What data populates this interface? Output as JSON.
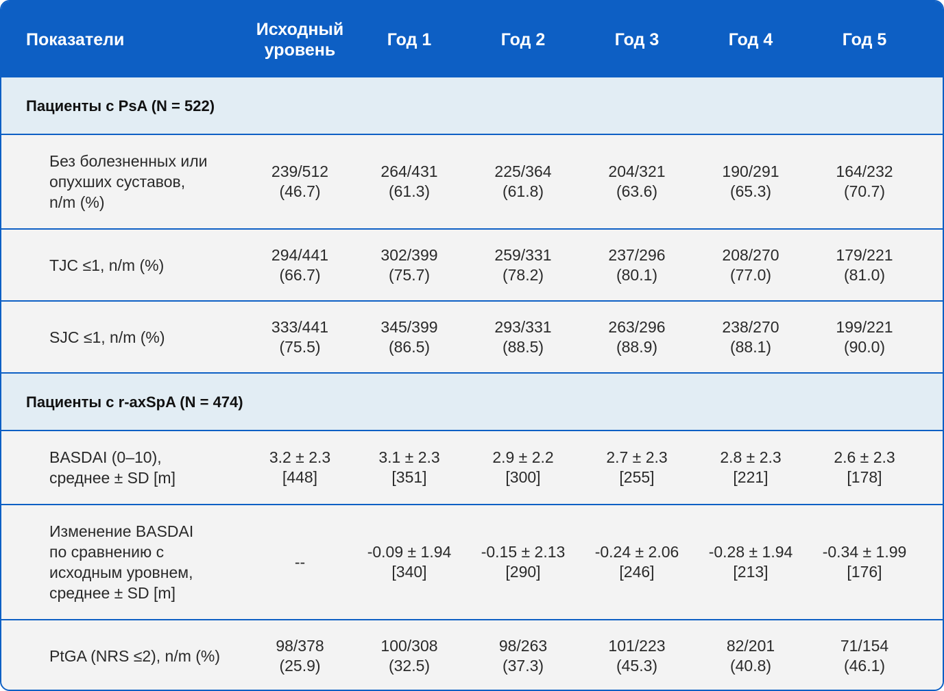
{
  "header": {
    "columns": [
      "Показатели",
      "Исходный\nуровень",
      "Год 1",
      "Год 2",
      "Год 3",
      "Год 4",
      "Год 5"
    ]
  },
  "sections": [
    {
      "title": "Пациенты с PsA (N = 522)",
      "rows": [
        {
          "label": "Без болезненных или\nопухших суставов,\nn/m (%)",
          "values": [
            "239/512\n(46.7)",
            "264/431\n(61.3)",
            "225/364\n(61.8)",
            "204/321\n(63.6)",
            "190/291\n(65.3)",
            "164/232\n(70.7)"
          ]
        },
        {
          "label": "TJC ≤1, n/m (%)",
          "values": [
            "294/441\n(66.7)",
            "302/399\n(75.7)",
            "259/331\n(78.2)",
            "237/296\n(80.1)",
            "208/270\n(77.0)",
            "179/221\n(81.0)"
          ]
        },
        {
          "label": "SJC ≤1, n/m (%)",
          "values": [
            "333/441\n(75.5)",
            "345/399\n(86.5)",
            "293/331\n(88.5)",
            "263/296\n(88.9)",
            "238/270\n(88.1)",
            "199/221\n(90.0)"
          ]
        }
      ]
    },
    {
      "title": "Пациенты с r-axSpA (N = 474)",
      "rows": [
        {
          "label": "BASDAI (0–10),\nсреднее ± SD [m]",
          "values": [
            "3.2 ± 2.3\n[448]",
            "3.1 ± 2.3\n[351]",
            "2.9 ± 2.2\n[300]",
            "2.7 ± 2.3\n[255]",
            "2.8 ± 2.3\n[221]",
            "2.6 ± 2.3\n[178]"
          ]
        },
        {
          "label": "Изменение BASDAI\nпо сравнению с\n исходным уровнем,\nсреднее ± SD [m]",
          "values": [
            "--",
            "-0.09 ± 1.94\n[340]",
            "-0.15 ± 2.13\n[290]",
            "-0.24 ± 2.06\n[246]",
            "-0.28 ± 1.94\n[213]",
            "-0.34 ± 1.99\n[176]"
          ]
        },
        {
          "label": "PtGA (NRS ≤2), n/m (%)",
          "values": [
            "98/378\n(25.9)",
            "100/308\n(32.5)",
            "98/263\n(37.3)",
            "101/223\n(45.3)",
            "82/201\n(40.8)",
            "71/154\n(46.1)"
          ]
        }
      ]
    }
  ],
  "colors": {
    "header_bg": "#0d5fc4",
    "section_bg": "#e2edf4",
    "row_bg": "#f3f3f3",
    "border": "#0d5fc4"
  }
}
